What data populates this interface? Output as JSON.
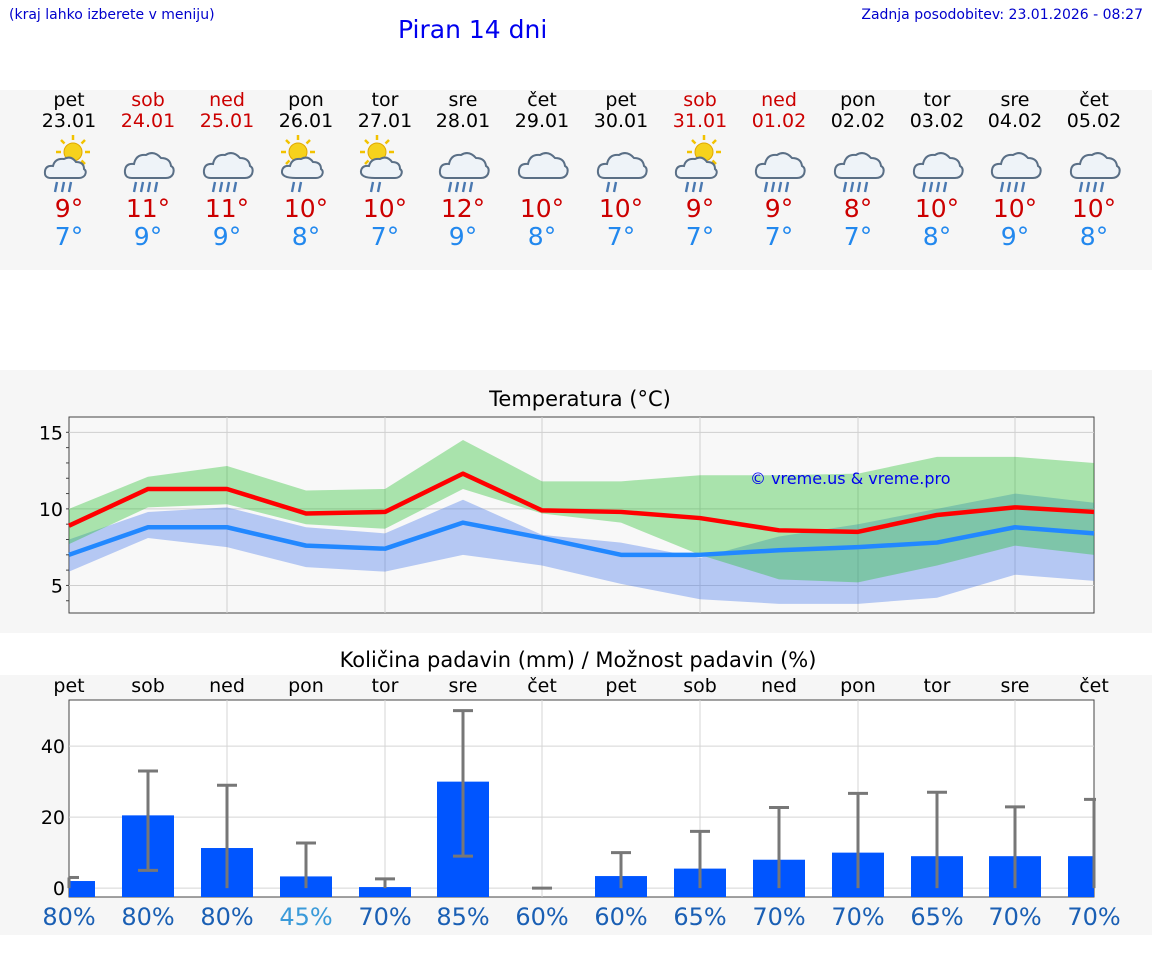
{
  "header": {
    "hint": "(kraj lahko izberete v meniju)",
    "title": "Piran 14 dni",
    "updated": "Zadnja posodobitev: 23.01.2026 - 08:27"
  },
  "colors": {
    "weekday": "#000000",
    "weekend": "#cc0000",
    "tmax": "#cc0000",
    "tmin": "#2288ee",
    "max_line": "#ff0000",
    "min_line": "#2288ff",
    "bar": "#0055ff",
    "errorbar": "#777777",
    "pct_dark": "#1a5fb4",
    "pct_light": "#3a9ad9"
  },
  "days": [
    {
      "name": "pet",
      "date": "23.01",
      "weekend": false,
      "icon": "partly-sunny-rain-icon",
      "tmax": "9°",
      "tmin": "7°"
    },
    {
      "name": "sob",
      "date": "24.01",
      "weekend": true,
      "icon": "cloud-rain-icon",
      "tmax": "11°",
      "tmin": "9°"
    },
    {
      "name": "ned",
      "date": "25.01",
      "weekend": true,
      "icon": "cloud-rain-icon",
      "tmax": "11°",
      "tmin": "9°"
    },
    {
      "name": "pon",
      "date": "26.01",
      "weekend": false,
      "icon": "sun-cloud-rain-icon",
      "tmax": "10°",
      "tmin": "8°"
    },
    {
      "name": "tor",
      "date": "27.01",
      "weekend": false,
      "icon": "sun-cloud-rain-icon",
      "tmax": "10°",
      "tmin": "7°"
    },
    {
      "name": "sre",
      "date": "28.01",
      "weekend": false,
      "icon": "cloud-rain-icon",
      "tmax": "12°",
      "tmin": "9°"
    },
    {
      "name": "čet",
      "date": "29.01",
      "weekend": false,
      "icon": "cloudy-icon",
      "tmax": "10°",
      "tmin": "8°"
    },
    {
      "name": "pet",
      "date": "30.01",
      "weekend": false,
      "icon": "cloud-drizzle-icon",
      "tmax": "10°",
      "tmin": "7°"
    },
    {
      "name": "sob",
      "date": "31.01",
      "weekend": true,
      "icon": "partly-sunny-rain-icon",
      "tmax": "9°",
      "tmin": "7°"
    },
    {
      "name": "ned",
      "date": "01.02",
      "weekend": true,
      "icon": "cloud-rain-icon",
      "tmax": "9°",
      "tmin": "7°"
    },
    {
      "name": "pon",
      "date": "02.02",
      "weekend": false,
      "icon": "cloud-rain-icon",
      "tmax": "8°",
      "tmin": "7°"
    },
    {
      "name": "tor",
      "date": "03.02",
      "weekend": false,
      "icon": "cloud-rain-icon",
      "tmax": "10°",
      "tmin": "8°"
    },
    {
      "name": "sre",
      "date": "04.02",
      "weekend": false,
      "icon": "cloud-rain-icon",
      "tmax": "10°",
      "tmin": "9°"
    },
    {
      "name": "čet",
      "date": "05.02",
      "weekend": false,
      "icon": "cloud-rain-icon",
      "tmax": "10°",
      "tmin": "8°"
    }
  ],
  "chart_data": [
    {
      "type": "line",
      "title": "Temperatura (°C)",
      "watermark": "© vreme.us & vreme.pro",
      "x": [
        0,
        1,
        2,
        3,
        4,
        5,
        6,
        7,
        8,
        9,
        10,
        11,
        12,
        13
      ],
      "ylim": [
        3.2,
        16
      ],
      "yticks": [
        5,
        10,
        15
      ],
      "grid": true,
      "series": [
        {
          "name": "max",
          "values": [
            8.9,
            11.3,
            11.3,
            9.7,
            9.8,
            12.3,
            9.9,
            9.8,
            9.4,
            8.6,
            8.5,
            9.6,
            10.1,
            9.8
          ],
          "band_low": [
            7.7,
            10.1,
            10.3,
            9.0,
            8.7,
            11.3,
            9.7,
            9.1,
            7.0,
            5.4,
            5.2,
            6.3,
            7.6,
            7.0
          ],
          "band_high": [
            10.0,
            12.1,
            12.8,
            11.2,
            11.3,
            14.5,
            11.8,
            11.8,
            12.2,
            12.2,
            12.3,
            13.4,
            13.4,
            13.0
          ]
        },
        {
          "name": "min",
          "values": [
            7.0,
            8.8,
            8.8,
            7.6,
            7.4,
            9.1,
            8.1,
            7.0,
            7.0,
            7.3,
            7.5,
            7.8,
            8.8,
            8.4
          ],
          "band_low": [
            5.9,
            8.1,
            7.5,
            6.2,
            5.9,
            7.0,
            6.3,
            5.1,
            4.1,
            3.8,
            3.8,
            4.2,
            5.7,
            5.3
          ],
          "band_high": [
            8.0,
            9.8,
            10.1,
            8.8,
            8.4,
            10.6,
            8.3,
            7.8,
            6.8,
            8.2,
            9.0,
            10.0,
            11.0,
            10.4
          ]
        }
      ]
    },
    {
      "type": "bar",
      "title": "Količina padavin (mm) / Možnost padavin (%)",
      "categories": [
        "pet",
        "sob",
        "ned",
        "pon",
        "tor",
        "sre",
        "čet",
        "pet",
        "sob",
        "ned",
        "pon",
        "tor",
        "sre",
        "čet"
      ],
      "values": [
        2,
        20.5,
        11.3,
        3.3,
        0.3,
        30,
        0,
        3.4,
        5.5,
        8,
        10,
        9,
        9,
        9
      ],
      "err_low": [
        0,
        5,
        0,
        0,
        0,
        9,
        0,
        0,
        0,
        0,
        0,
        0,
        0,
        0
      ],
      "err_high": [
        3,
        33,
        29,
        12.7,
        2.6,
        50,
        0,
        10,
        16,
        22.7,
        26.7,
        27,
        22.9,
        25
      ],
      "ylim": [
        -2.5,
        53
      ],
      "yticks": [
        0,
        20,
        40
      ],
      "probability": [
        "80%",
        "80%",
        "80%",
        "45%",
        "70%",
        "85%",
        "60%",
        "60%",
        "65%",
        "70%",
        "70%",
        "65%",
        "70%",
        "70%"
      ],
      "grid": true
    }
  ]
}
